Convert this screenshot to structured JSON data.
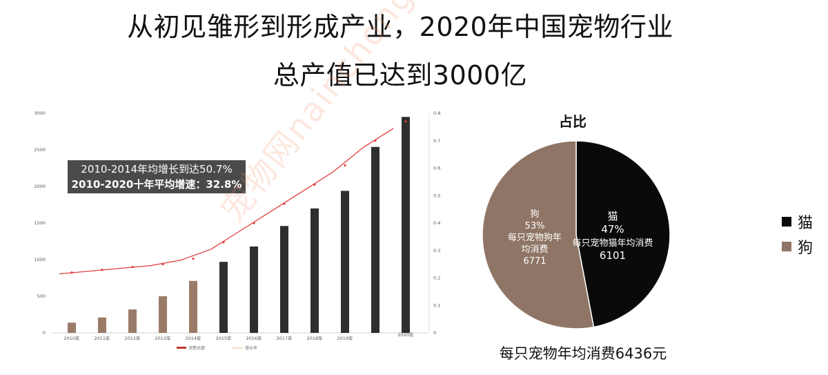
{
  "titles": {
    "line1": "从初见雏形到形成产业，2020年中国宠物行业",
    "line2": "总产值已达到3000亿"
  },
  "annotation": {
    "line1": "2010-2014年均增长到达50.7%",
    "line2": "2010-2020十年平均增速：32.8%"
  },
  "pie_title": "占比",
  "footer_note": "每只宠物年均消费6436元",
  "watermark": "宠物网nainchong.com",
  "colors": {
    "early_bar": "#9a7b68",
    "late_bar": "#2e2e2e",
    "growth_line": "#e03c3c",
    "cat": "#0a0a0a",
    "dog": "#8f7565"
  },
  "chart_data": [
    {
      "type": "bar",
      "categories": [
        "2010年",
        "2011年",
        "2012年",
        "2013年",
        "2014年",
        "2015年",
        "2016年",
        "2017年",
        "2018年",
        "2019年",
        "",
        "2020年"
      ],
      "series": [
        {
          "name": "消费总额",
          "values": [
            140,
            210,
            320,
            500,
            710,
            970,
            1180,
            1460,
            1700,
            1940,
            2540,
            2950
          ]
        },
        {
          "name": "增长率",
          "type": "line",
          "axis": "right",
          "values": [
            0.22,
            0.23,
            0.24,
            0.25,
            0.27,
            0.33,
            0.4,
            0.47,
            0.54,
            0.61,
            0.7,
            0.77
          ]
        }
      ],
      "y_left": {
        "ticks": [
          0,
          500,
          1000,
          1500,
          2000,
          2500,
          3000
        ],
        "range": [
          0,
          3000
        ]
      },
      "y_right": {
        "ticks": [
          "0",
          "0.1",
          "0.2",
          "0.3",
          "0.4",
          "0.5",
          "0.6",
          "0.7",
          "0.8"
        ],
        "range": [
          0,
          0.8
        ]
      },
      "legend": [
        "消费总额",
        "增长率"
      ],
      "legend_position": "bottom"
    },
    {
      "type": "pie",
      "title": "占比",
      "slices": [
        {
          "name": "猫",
          "percent_label": "47%",
          "value": 47,
          "desc": "每只宠物猫年均消费",
          "amount": "6101"
        },
        {
          "name": "狗",
          "percent_label": "53%",
          "value": 53,
          "desc_lines": [
            "每只宠物狗年",
            "均消费"
          ],
          "amount": "6771"
        }
      ],
      "legend": [
        "猫",
        "狗"
      ],
      "legend_position": "right"
    }
  ]
}
